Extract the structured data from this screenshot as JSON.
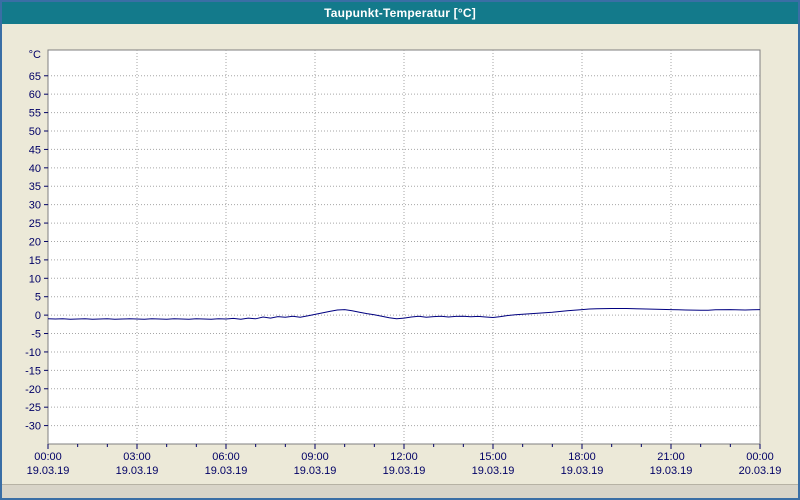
{
  "window": {
    "title": "Taupunkt-Temperatur [°C]",
    "title_bar_color": "#137a8b",
    "border_color": "#3a6ea5",
    "background_color": "#ece9d8"
  },
  "chart_data": {
    "type": "line",
    "title": "Taupunkt-Temperatur [°C]",
    "y_unit": "°C",
    "ylim": [
      -35,
      72
    ],
    "y_ticks": [
      65,
      60,
      55,
      50,
      45,
      40,
      35,
      30,
      25,
      20,
      15,
      10,
      5,
      0,
      -5,
      -10,
      -15,
      -20,
      -25,
      -30
    ],
    "grid": "dotted",
    "legend": "none",
    "colors": {
      "grid": "#a6a6a6",
      "tick": "#000066",
      "plot_border": "#7f7f7f",
      "plot_background": "#ffffff"
    },
    "x_ticks": [
      {
        "hour": 0,
        "time": "00:00",
        "date": "19.03.19"
      },
      {
        "hour": 3,
        "time": "03:00",
        "date": "19.03.19"
      },
      {
        "hour": 6,
        "time": "06:00",
        "date": "19.03.19"
      },
      {
        "hour": 9,
        "time": "09:00",
        "date": "19.03.19"
      },
      {
        "hour": 12,
        "time": "12:00",
        "date": "19.03.19"
      },
      {
        "hour": 15,
        "time": "15:00",
        "date": "19.03.19"
      },
      {
        "hour": 18,
        "time": "18:00",
        "date": "19.03.19"
      },
      {
        "hour": 21,
        "time": "21:00",
        "date": "19.03.19"
      },
      {
        "hour": 24,
        "time": "00:00",
        "date": "20.03.19"
      }
    ],
    "series": [
      {
        "name": "Taupunkt-Temperatur",
        "color": "#000080",
        "x": [
          0,
          0.25,
          0.5,
          0.75,
          1,
          1.25,
          1.5,
          1.75,
          2,
          2.25,
          2.5,
          2.75,
          3,
          3.25,
          3.5,
          3.75,
          4,
          4.25,
          4.5,
          4.75,
          5,
          5.25,
          5.5,
          5.75,
          6,
          6.25,
          6.5,
          6.75,
          7,
          7.25,
          7.5,
          7.75,
          8,
          8.25,
          8.5,
          8.75,
          9,
          9.25,
          9.5,
          9.75,
          10,
          10.25,
          10.5,
          10.75,
          11,
          11.25,
          11.5,
          11.75,
          12,
          12.25,
          12.5,
          12.75,
          13,
          13.25,
          13.5,
          13.75,
          14,
          14.25,
          14.5,
          14.75,
          15,
          15.25,
          15.5,
          15.75,
          16,
          16.5,
          17,
          17.5,
          18,
          18.25,
          18.5,
          19,
          19.5,
          20,
          20.5,
          21,
          21.25,
          21.5,
          22,
          22.25,
          22.5,
          23,
          23.5,
          23.75,
          24
        ],
        "values": [
          -1,
          -1.05,
          -1,
          -1.1,
          -1.05,
          -1,
          -1.1,
          -1.05,
          -1,
          -1.1,
          -1.05,
          -1,
          -1.05,
          -1.1,
          -1,
          -1.05,
          -1.1,
          -1,
          -1.05,
          -1.1,
          -1,
          -1.05,
          -1.1,
          -1,
          -1.05,
          -0.9,
          -1.1,
          -0.8,
          -1,
          -0.5,
          -0.8,
          -0.4,
          -0.6,
          -0.3,
          -0.6,
          -0.2,
          0.2,
          0.6,
          1,
          1.4,
          1.5,
          1.2,
          0.8,
          0.4,
          0.1,
          -0.3,
          -0.7,
          -1,
          -0.8,
          -0.5,
          -0.3,
          -0.6,
          -0.4,
          -0.3,
          -0.5,
          -0.35,
          -0.3,
          -0.45,
          -0.35,
          -0.5,
          -0.65,
          -0.4,
          -0.1,
          0.1,
          0.25,
          0.5,
          0.8,
          1.2,
          1.5,
          1.65,
          1.75,
          1.8,
          1.8,
          1.7,
          1.6,
          1.5,
          1.45,
          1.4,
          1.3,
          1.35,
          1.45,
          1.5,
          1.4,
          1.45,
          1.5
        ]
      }
    ]
  }
}
